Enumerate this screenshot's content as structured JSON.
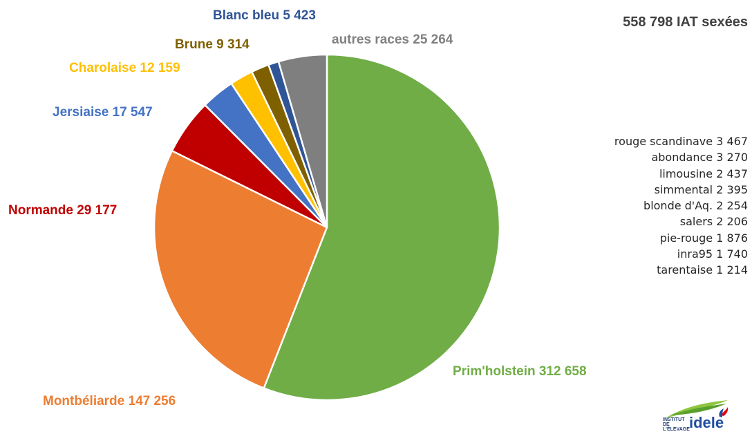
{
  "chart_data": {
    "type": "pie",
    "title": "558 798 IAT sexées",
    "slices": [
      {
        "label": "Prim'holstein 312 658",
        "value": 312658,
        "color": "#70ad47"
      },
      {
        "label": "Montbéliarde 147 256",
        "value": 147256,
        "color": "#ed7d31"
      },
      {
        "label": "Normande 29 177",
        "value": 29177,
        "color": "#c00000"
      },
      {
        "label": "Jersiaise 17 547",
        "value": 17547,
        "color": "#4472c4"
      },
      {
        "label": "Charolaise 12 159",
        "value": 12159,
        "color": "#ffc000"
      },
      {
        "label": "Brune 9 314",
        "value": 9314,
        "color": "#7f6000"
      },
      {
        "label": "Blanc bleu 5 423",
        "value": 5423,
        "color": "#2f5597"
      },
      {
        "label": "autres races  25 264",
        "value": 25264,
        "color": "#7f7f7f"
      }
    ],
    "others_breakdown": [
      "rouge scandinave 3 467",
      "abondance 3 270",
      "limousine 2 437",
      "simmental 2 395",
      "blonde d'Aq. 2 254",
      "salers 2 206",
      "pie-rouge 1 876",
      "inra95 1 740",
      "tarentaise 1 214"
    ]
  },
  "logo": {
    "small_text": "INSTITUT DE L'ÉLEVAGE",
    "big_text": "idele",
    "colors": {
      "green": "#8dc63f",
      "blue": "#1f4ea0",
      "red": "#e30613"
    }
  }
}
